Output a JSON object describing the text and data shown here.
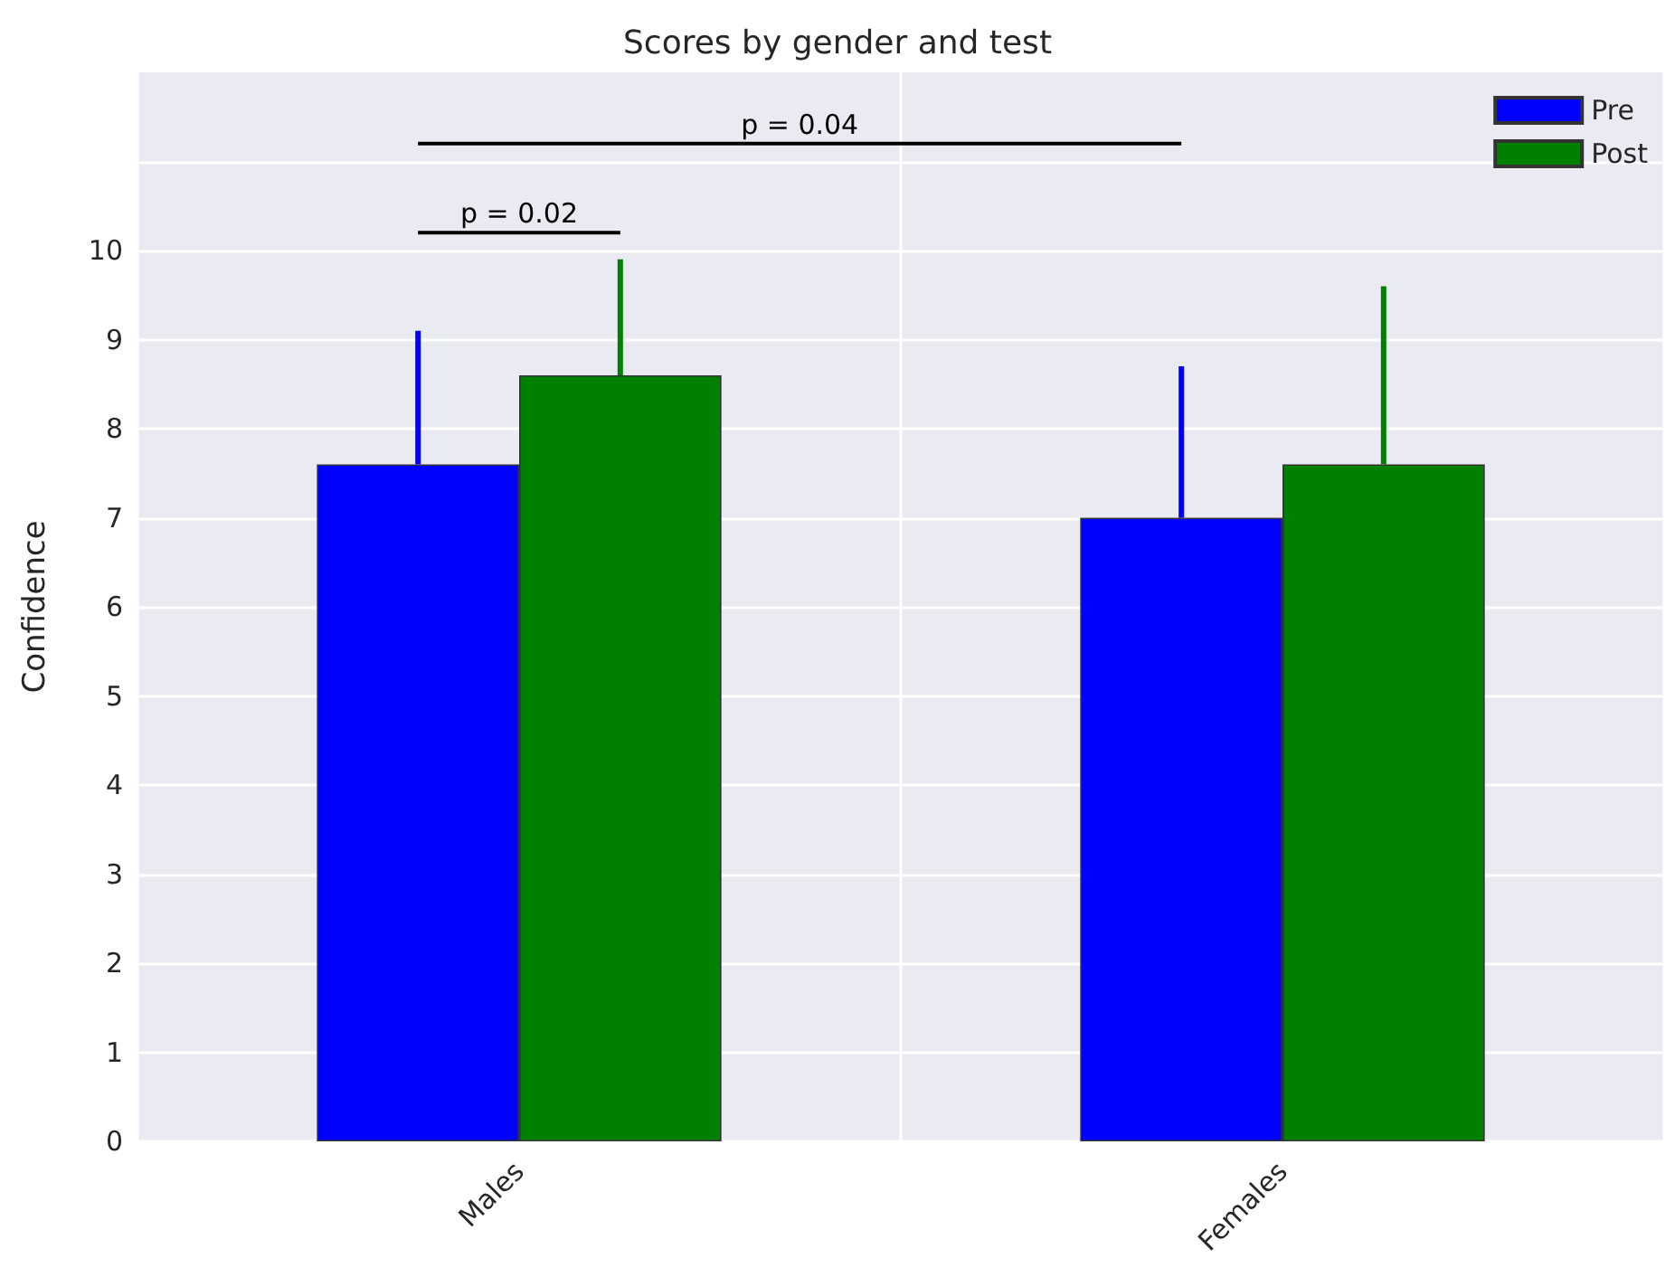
{
  "chart_data": {
    "type": "bar",
    "title": "Scores by gender and test",
    "ylabel": "Confidence",
    "categories": [
      "Males",
      "Females"
    ],
    "series": [
      {
        "name": "Pre",
        "color": "#0000ff",
        "values": [
          7.6,
          7.0
        ],
        "errors": [
          [
            7.6,
            9.1
          ],
          [
            7.0,
            8.7
          ]
        ]
      },
      {
        "name": "Post",
        "color": "#008000",
        "values": [
          8.6,
          7.6
        ],
        "errors": [
          [
            8.6,
            9.9
          ],
          [
            7.6,
            9.6
          ]
        ]
      }
    ],
    "ylim": [
      0,
      12
    ],
    "yticks": [
      0,
      1,
      2,
      3,
      4,
      5,
      6,
      7,
      8,
      9,
      10,
      {
        "value": 11,
        "label": null
      }
    ],
    "grid": true,
    "legend": "top right",
    "annotations": [
      "p = 0.02",
      "p = 0.04"
    ]
  }
}
